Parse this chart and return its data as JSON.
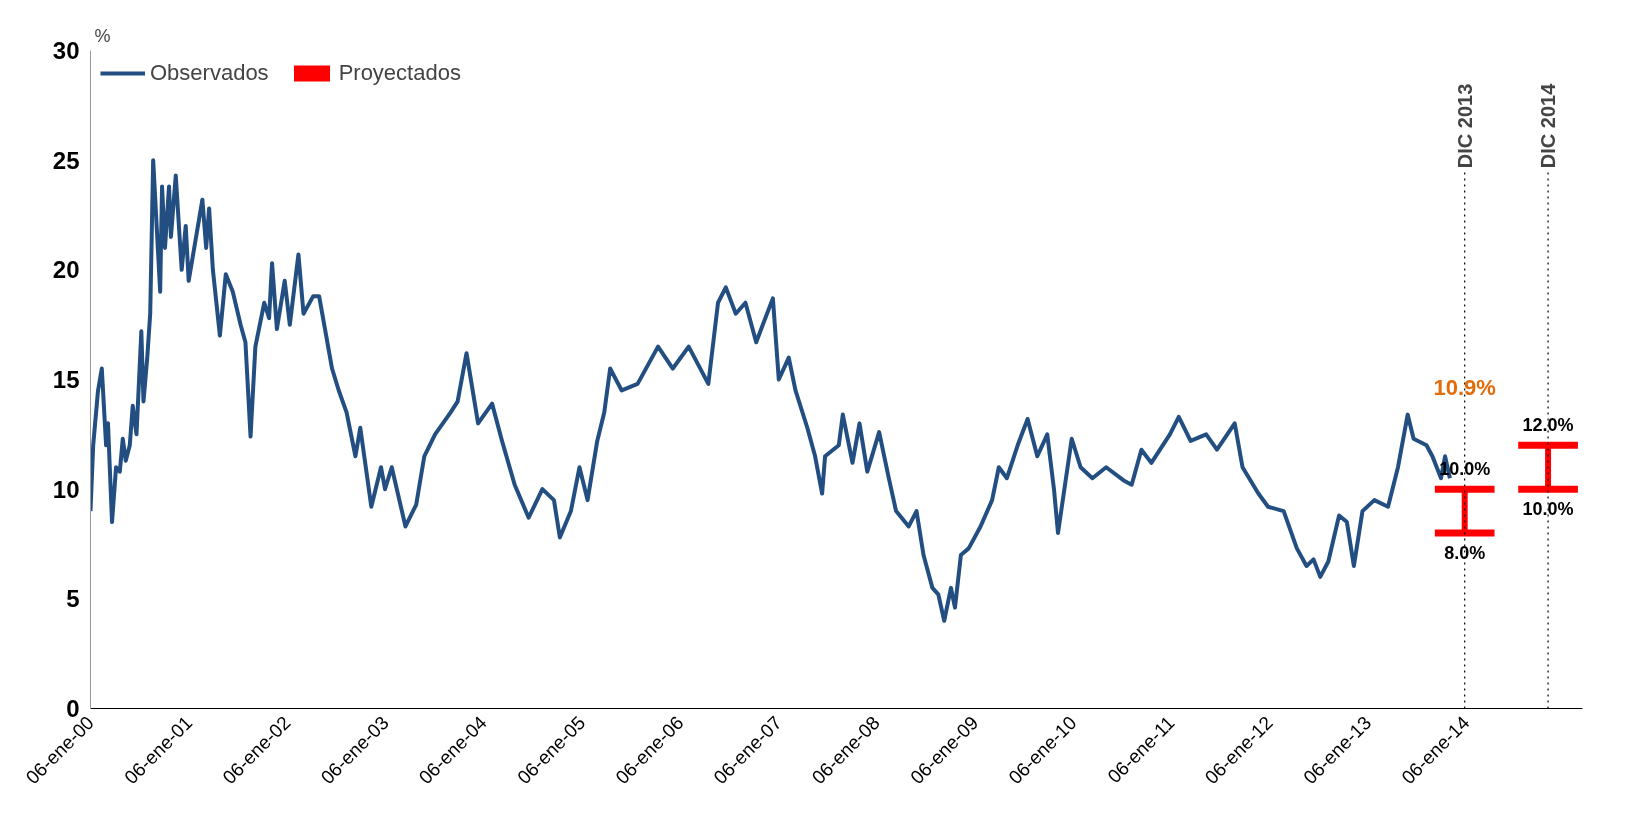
{
  "chart_data": {
    "type": "line",
    "ylabel": "%",
    "xlim": [
      "2000-01-06",
      "2015-03-15"
    ],
    "ylim": [
      0,
      30
    ],
    "yticks": [
      0,
      5,
      10,
      15,
      20,
      25,
      30
    ],
    "xticks": [
      {
        "value": "2000-01-06",
        "label": "06-ene-00"
      },
      {
        "value": "2001-01-06",
        "label": "06-ene-01"
      },
      {
        "value": "2002-01-06",
        "label": "06-ene-02"
      },
      {
        "value": "2003-01-06",
        "label": "06-ene-03"
      },
      {
        "value": "2004-01-06",
        "label": "06-ene-04"
      },
      {
        "value": "2005-01-06",
        "label": "06-ene-05"
      },
      {
        "value": "2006-01-06",
        "label": "06-ene-06"
      },
      {
        "value": "2007-01-06",
        "label": "06-ene-07"
      },
      {
        "value": "2008-01-06",
        "label": "06-ene-08"
      },
      {
        "value": "2009-01-06",
        "label": "06-ene-09"
      },
      {
        "value": "2010-01-06",
        "label": "06-ene-10"
      },
      {
        "value": "2011-01-06",
        "label": "06-ene-11"
      },
      {
        "value": "2012-01-06",
        "label": "06-ene-12"
      },
      {
        "value": "2013-01-06",
        "label": "06-ene-13"
      },
      {
        "value": "2014-01-06",
        "label": "06-ene-14"
      }
    ],
    "grid": false,
    "legend": "top left",
    "marker": "none",
    "line_style": "solid",
    "series": [
      {
        "name": "Observados",
        "color": "#234e82",
        "x": [
          "2000-01-06",
          "2000-01-16",
          "2000-02-03",
          "2000-02-17",
          "2000-03-04",
          "2000-03-11",
          "2000-03-26",
          "2000-04-10",
          "2000-04-24",
          "2000-05-05",
          "2000-05-16",
          "2000-05-31",
          "2000-06-11",
          "2000-06-25",
          "2000-07-13",
          "2000-07-21",
          "2000-08-04",
          "2000-08-15",
          "2000-08-26",
          "2000-09-21",
          "2000-09-28",
          "2000-10-09",
          "2000-10-24",
          "2000-10-31",
          "2000-11-18",
          "2000-12-10",
          "2000-12-25",
          "2001-01-05",
          "2001-02-25",
          "2001-03-11",
          "2001-03-22",
          "2001-04-05",
          "2001-05-01",
          "2001-05-23",
          "2001-06-18",
          "2001-07-17",
          "2001-08-04",
          "2001-08-23",
          "2001-09-10",
          "2001-10-13",
          "2001-10-31",
          "2001-11-11",
          "2001-11-29",
          "2001-12-28",
          "2002-01-16",
          "2002-02-17",
          "2002-03-08",
          "2002-04-13",
          "2002-05-05",
          "2002-06-22",
          "2002-07-17",
          "2002-08-15",
          "2002-09-17",
          "2002-10-05",
          "2002-11-15",
          "2002-12-21",
          "2003-01-05",
          "2003-01-30",
          "2003-03-22",
          "2003-05-01",
          "2003-05-31",
          "2003-07-10",
          "2003-09-06",
          "2003-10-02",
          "2003-11-04",
          "2003-12-17",
          "2004-02-07",
          "2004-03-15",
          "2004-05-01",
          "2004-06-22",
          "2004-08-12",
          "2004-09-24",
          "2004-10-16",
          "2004-11-26",
          "2004-12-28",
          "2005-01-27",
          "2005-03-04",
          "2005-03-30",
          "2005-04-21",
          "2005-06-03",
          "2005-08-01",
          "2005-10-16",
          "2005-12-10",
          "2006-02-07",
          "2006-04-21",
          "2006-05-27",
          "2006-06-25",
          "2006-08-01",
          "2006-09-06",
          "2006-10-16",
          "2006-12-17",
          "2007-01-08",
          "2007-02-14",
          "2007-03-11",
          "2007-04-24",
          "2007-05-23",
          "2007-06-18",
          "2007-06-29",
          "2007-08-19",
          "2007-09-03",
          "2007-10-09",
          "2007-11-04",
          "2007-12-03",
          "2008-01-16",
          "2008-02-21",
          "2008-03-19",
          "2008-05-05",
          "2008-06-03",
          "2008-06-29",
          "2008-08-01",
          "2008-08-23",
          "2008-09-14",
          "2008-10-09",
          "2008-10-24",
          "2008-11-15",
          "2008-12-14",
          "2009-01-27",
          "2009-03-11",
          "2009-04-05",
          "2009-05-05",
          "2009-06-14",
          "2009-07-21",
          "2009-08-26",
          "2009-10-02",
          "2009-10-27",
          "2009-11-11",
          "2010-01-01",
          "2010-02-03",
          "2010-03-19",
          "2010-05-09",
          "2010-07-13",
          "2010-08-12",
          "2010-09-17",
          "2010-10-24",
          "2011-01-01",
          "2011-02-03",
          "2011-03-19",
          "2011-05-16",
          "2011-06-25",
          "2011-08-30",
          "2011-09-28",
          "2011-11-26",
          "2012-01-01",
          "2012-02-28",
          "2012-04-17",
          "2012-05-23",
          "2012-06-18",
          "2012-07-13",
          "2012-08-12",
          "2012-09-21",
          "2012-10-20",
          "2012-11-15",
          "2012-12-17",
          "2013-01-30",
          "2013-03-22",
          "2013-04-28",
          "2013-06-03",
          "2013-06-25",
          "2013-08-12",
          "2013-09-03",
          "2013-10-05",
          "2013-10-20",
          "2013-11-07"
        ],
        "values": [
          9,
          12,
          14.5,
          15.5,
          12,
          13,
          8.5,
          11,
          10.8,
          12.3,
          11.3,
          12,
          13.8,
          12.5,
          17.2,
          14,
          16,
          18,
          25,
          19,
          23.8,
          21,
          23.8,
          21.5,
          24.3,
          20,
          22,
          19.5,
          23.2,
          21,
          22.8,
          20,
          17,
          19.8,
          19,
          17.5,
          16.7,
          12.4,
          16.5,
          18.5,
          17.8,
          20.3,
          17.3,
          19.5,
          17.5,
          20.7,
          18,
          18.8,
          18.8,
          15.5,
          14.5,
          13.5,
          11.5,
          12.8,
          9.2,
          11,
          10,
          11,
          8.3,
          9.3,
          11.5,
          12.5,
          13.5,
          14,
          16.2,
          13,
          13.9,
          12.2,
          10.2,
          8.7,
          10,
          9.5,
          7.8,
          9,
          11,
          9.5,
          12.2,
          13.5,
          15.5,
          14.5,
          14.8,
          16.5,
          15.5,
          16.5,
          14.8,
          18.5,
          19.2,
          18,
          18.5,
          16.7,
          18.7,
          15,
          16,
          14.5,
          12.8,
          11.5,
          9.8,
          11.5,
          12,
          13.4,
          11.2,
          13,
          10.8,
          12.6,
          10.5,
          9,
          8.3,
          9,
          7,
          5.5,
          5.2,
          4,
          5.5,
          4.6,
          7,
          7.3,
          8.3,
          9.5,
          11,
          10.5,
          12,
          13.2,
          11.5,
          12.5,
          10,
          8,
          12.3,
          11,
          10.5,
          11,
          10.4,
          10.2,
          11.8,
          11.2,
          12.5,
          13.3,
          12.2,
          12.5,
          11.8,
          13,
          11,
          9.8,
          9.2,
          9,
          7.3,
          6.5,
          6.8,
          6,
          6.7,
          8.8,
          8.5,
          6.5,
          9,
          9.5,
          9.2,
          11,
          13.4,
          12.3,
          12,
          11.5,
          10.5,
          11.5,
          10.5
        ]
      },
      {
        "name": "Proyectados",
        "type": "bar",
        "color": "#ff0000",
        "x": [
          "2014-01-01",
          "2014-11-07"
        ],
        "base": [
          8,
          10
        ],
        "values": [
          2,
          2
        ]
      }
    ],
    "ref_lines": [
      {
        "axis": "x",
        "value": "2014-01-01",
        "label": "DIC 2013",
        "color": "#000000",
        "line_style": "dotted"
      },
      {
        "axis": "x",
        "value": "2014-11-07",
        "label": "DIC 2014",
        "color": "#000000",
        "line_style": "dotted"
      }
    ],
    "annotations": [
      {
        "text": "10.9%",
        "x": "2014-01-01",
        "y": 13.8
      },
      {
        "text": "10.0%",
        "x": "2014-01-01",
        "y": 10
      },
      {
        "text": "8.0%",
        "x": "2014-01-01",
        "y": 8
      },
      {
        "text": "12.0%",
        "x": "2014-11-07",
        "y": 12
      },
      {
        "text": "10.0%",
        "x": "2014-11-07",
        "y": 10
      }
    ]
  }
}
